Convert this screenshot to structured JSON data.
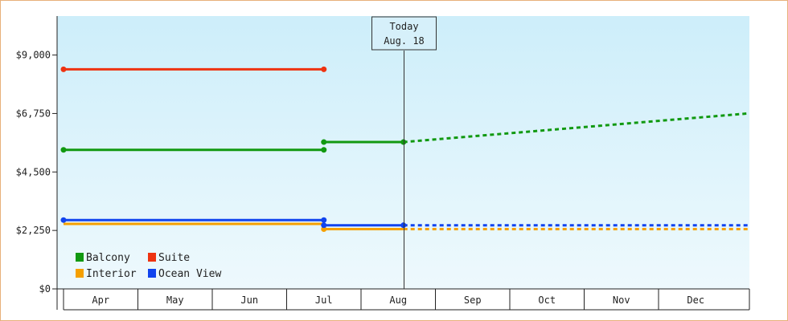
{
  "chart_data": {
    "type": "line",
    "currency_prefix": "$",
    "y_ticks": [
      "$0",
      "$2,250",
      "$4,500",
      "$6,750",
      "$9,000"
    ],
    "ylim": [
      0,
      10500
    ],
    "x_months": [
      "Apr",
      "May",
      "Jun",
      "Jul",
      "Aug",
      "Sep",
      "Oct",
      "Nov",
      "Dec"
    ],
    "x_axis_note": "x values are months from Apr 1 (Apr = 0 .. Dec = 9)",
    "today": {
      "line1": "Today",
      "line2": "Aug. 18",
      "x": 4.57
    },
    "grid": false,
    "legend_position": "bottom-left",
    "background_gradient": [
      "#cdeefa",
      "#eef9fd"
    ],
    "series": [
      {
        "name": "Balcony",
        "color": "#119911",
        "segments": [
          {
            "points": [
              [
                0,
                5350
              ],
              [
                3.5,
                5350
              ]
            ],
            "dashed": false
          },
          {
            "points": [
              [
                3.5,
                5650
              ],
              [
                4.57,
                5650
              ]
            ],
            "dashed": false
          },
          {
            "points": [
              [
                4.57,
                5650
              ],
              [
                9.2,
                6750
              ]
            ],
            "dashed": true
          }
        ],
        "markers": [
          [
            0,
            5350
          ],
          [
            3.5,
            5350
          ],
          [
            3.5,
            5650
          ],
          [
            4.57,
            5650
          ]
        ]
      },
      {
        "name": "Suite",
        "color": "#ee3311",
        "segments": [
          {
            "points": [
              [
                0,
                8450
              ],
              [
                3.5,
                8450
              ]
            ],
            "dashed": false
          }
        ],
        "markers": [
          [
            0,
            8450
          ],
          [
            3.5,
            8450
          ]
        ]
      },
      {
        "name": "Interior",
        "color": "#f5a000",
        "segments": [
          {
            "points": [
              [
                0,
                2500
              ],
              [
                3.5,
                2500
              ]
            ],
            "dashed": false
          },
          {
            "points": [
              [
                3.5,
                2300
              ],
              [
                4.57,
                2300
              ]
            ],
            "dashed": false
          },
          {
            "points": [
              [
                4.57,
                2300
              ],
              [
                9.2,
                2300
              ]
            ],
            "dashed": true
          }
        ],
        "markers": [
          [
            3.5,
            2300
          ]
        ]
      },
      {
        "name": "Ocean View",
        "color": "#1144ee",
        "segments": [
          {
            "points": [
              [
                0,
                2650
              ],
              [
                3.5,
                2650
              ]
            ],
            "dashed": false
          },
          {
            "points": [
              [
                3.5,
                2450
              ],
              [
                4.57,
                2450
              ]
            ],
            "dashed": false
          },
          {
            "points": [
              [
                4.57,
                2450
              ],
              [
                9.2,
                2450
              ]
            ],
            "dashed": true
          }
        ],
        "markers": [
          [
            0,
            2650
          ],
          [
            3.5,
            2650
          ],
          [
            3.5,
            2450
          ],
          [
            4.57,
            2450
          ]
        ]
      }
    ],
    "legend_order": [
      "Balcony",
      "Suite",
      "Interior",
      "Ocean View"
    ]
  }
}
